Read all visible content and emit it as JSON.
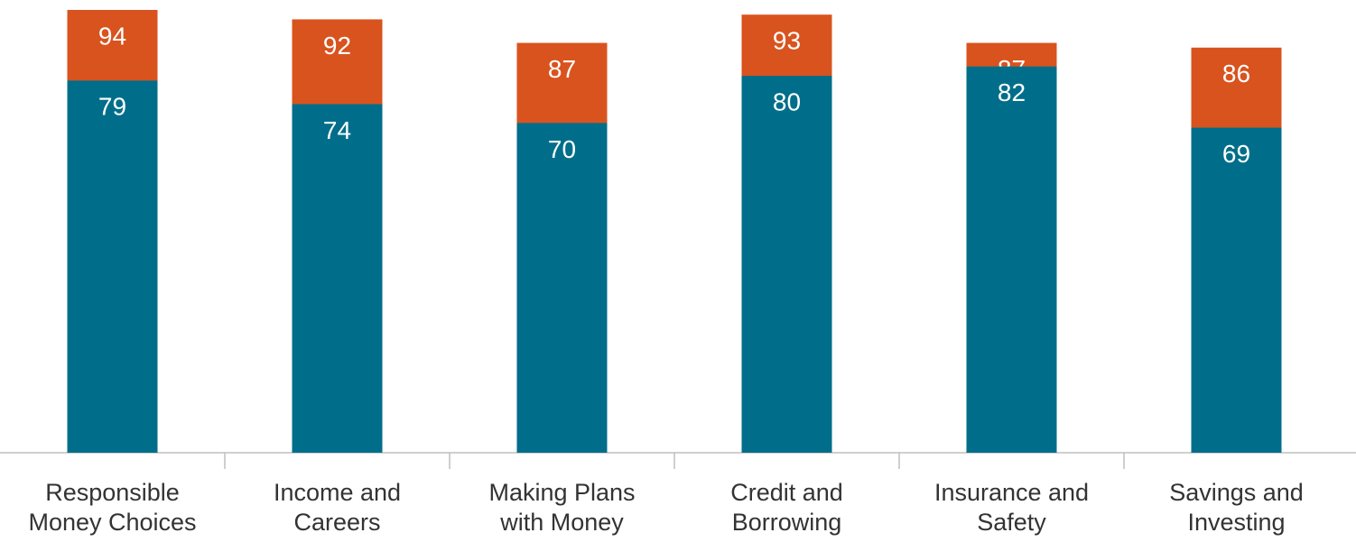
{
  "chart_data": {
    "type": "bar",
    "overlap": true,
    "categories": [
      [
        "Responsible",
        "Money Choices"
      ],
      [
        "Income and",
        "Careers"
      ],
      [
        "Making Plans",
        "with Money"
      ],
      [
        "Credit and",
        "Borrowing"
      ],
      [
        "Insurance and",
        "Safety"
      ],
      [
        "Savings and",
        "Investing"
      ]
    ],
    "series": [
      {
        "color": "#d9531e",
        "values": [
          94,
          92,
          87,
          93,
          87,
          86
        ]
      },
      {
        "color": "#006e8a",
        "values": [
          79,
          74,
          70,
          80,
          82,
          69
        ]
      }
    ],
    "ylim": [
      0,
      94
    ]
  }
}
